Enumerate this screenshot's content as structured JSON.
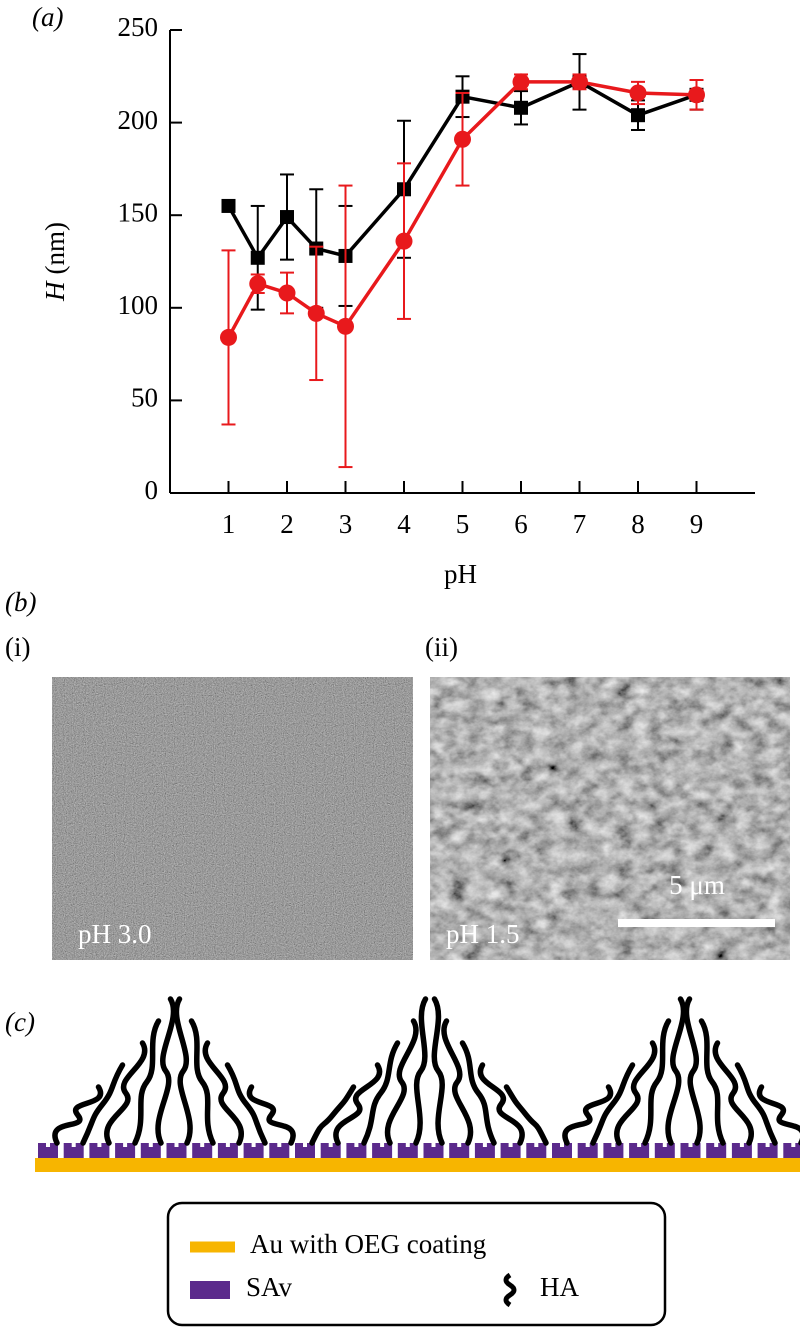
{
  "chart_data": {
    "type": "line",
    "xlabel": "pH",
    "ylabel": {
      "symbol": "H",
      "unit": "(nm)"
    },
    "x": [
      1,
      1.5,
      2,
      2.5,
      3,
      4,
      5,
      6,
      7,
      8,
      9
    ],
    "xlim": [
      0,
      10
    ],
    "xticks": [
      1,
      2,
      3,
      4,
      5,
      6,
      7,
      8,
      9
    ],
    "ylim": [
      0,
      250
    ],
    "yticks": [
      0,
      50,
      100,
      150,
      200,
      250
    ],
    "series": [
      {
        "color": "#000000",
        "marker": "square",
        "values": [
          155,
          127,
          149,
          132,
          128,
          164,
          214,
          208,
          222,
          204,
          215
        ],
        "errors": [
          0,
          28,
          23,
          32,
          27,
          37,
          11,
          9,
          15,
          8,
          8
        ]
      },
      {
        "color": "#e8191c",
        "marker": "circle",
        "values": [
          84,
          113,
          108,
          97,
          90,
          136,
          191,
          222,
          222,
          216,
          215
        ],
        "errors": [
          47,
          5,
          11,
          36,
          76,
          42,
          25,
          4,
          4,
          6,
          8
        ]
      }
    ]
  },
  "panel_labels": {
    "a": "(a)",
    "b": "(b)",
    "b_i": "(i)",
    "b_ii": "(ii)",
    "c": "(c)"
  },
  "images": [
    {
      "label": "pH 3.0"
    },
    {
      "label": "pH 1.5",
      "scale_bar": "5 μm"
    }
  ],
  "legend": {
    "au": "Au with OEG coating",
    "sav": "SAv",
    "ha": "HA"
  }
}
